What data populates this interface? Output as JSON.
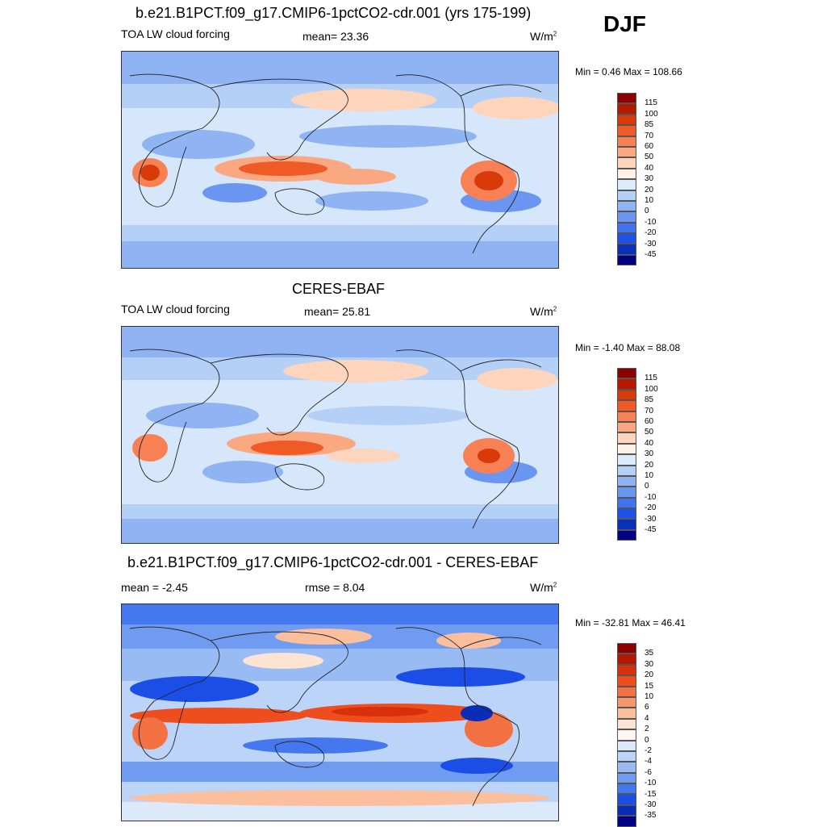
{
  "season": "DJF",
  "units_base": "W/m",
  "units_exp": "2",
  "panels": [
    {
      "title": "b.e21.B1PCT.f09_g17.CMIP6-1pctCO2-cdr.001 (yrs 175-199)",
      "left_label": "TOA LW cloud forcing",
      "stat_label": "mean=",
      "stat_value": "23.36",
      "min_label": "Min =",
      "min_value": "0.46",
      "max_label": "Max =",
      "max_value": "108.66",
      "levels": [
        "115",
        "100",
        "85",
        "70",
        "60",
        "50",
        "40",
        "30",
        "20",
        "10",
        "0",
        "-10",
        "-20",
        "-30",
        "-45"
      ]
    },
    {
      "title": "CERES-EBAF",
      "left_label": "TOA LW cloud forcing",
      "stat_label": "mean=",
      "stat_value": "25.81",
      "min_label": "Min =",
      "min_value": "-1.40",
      "max_label": "Max =",
      "max_value": "88.08",
      "levels": [
        "115",
        "100",
        "85",
        "70",
        "60",
        "50",
        "40",
        "30",
        "20",
        "10",
        "0",
        "-10",
        "-20",
        "-30",
        "-45"
      ]
    },
    {
      "title": "b.e21.B1PCT.f09_g17.CMIP6-1pctCO2-cdr.001 - CERES-EBAF",
      "left_label": "mean =",
      "left_value": "-2.45",
      "stat_label": "rmse =",
      "stat_value": "8.04",
      "min_label": "Min =",
      "min_value": "-32.81",
      "max_label": "Max =",
      "max_value": "46.41",
      "levels": [
        "35",
        "30",
        "20",
        "15",
        "10",
        "6",
        "4",
        "2",
        "0",
        "-2",
        "-4",
        "-6",
        "-10",
        "-15",
        "-30",
        "-35"
      ]
    }
  ],
  "colors": {
    "abs_scale": [
      "#8b0000",
      "#b31a00",
      "#d93a0a",
      "#ef5a26",
      "#f78054",
      "#f9a882",
      "#fdd4bc",
      "#fdf0e6",
      "#dcebfb",
      "#b4d0f7",
      "#8fb3f3",
      "#6a95f0",
      "#4273ee",
      "#1c52e8",
      "#0a2fb8",
      "#000080"
    ],
    "diff_scale": [
      "#8b0000",
      "#b51800",
      "#d8300a",
      "#ee4e1e",
      "#f37042",
      "#f7966d",
      "#fbbf9e",
      "#fde3d1",
      "#fff8f2",
      "#dce9fb",
      "#bcd4f8",
      "#98bbf4",
      "#6f9cf0",
      "#4578ee",
      "#1b4ee6",
      "#0a2db6",
      "#000080"
    ]
  }
}
